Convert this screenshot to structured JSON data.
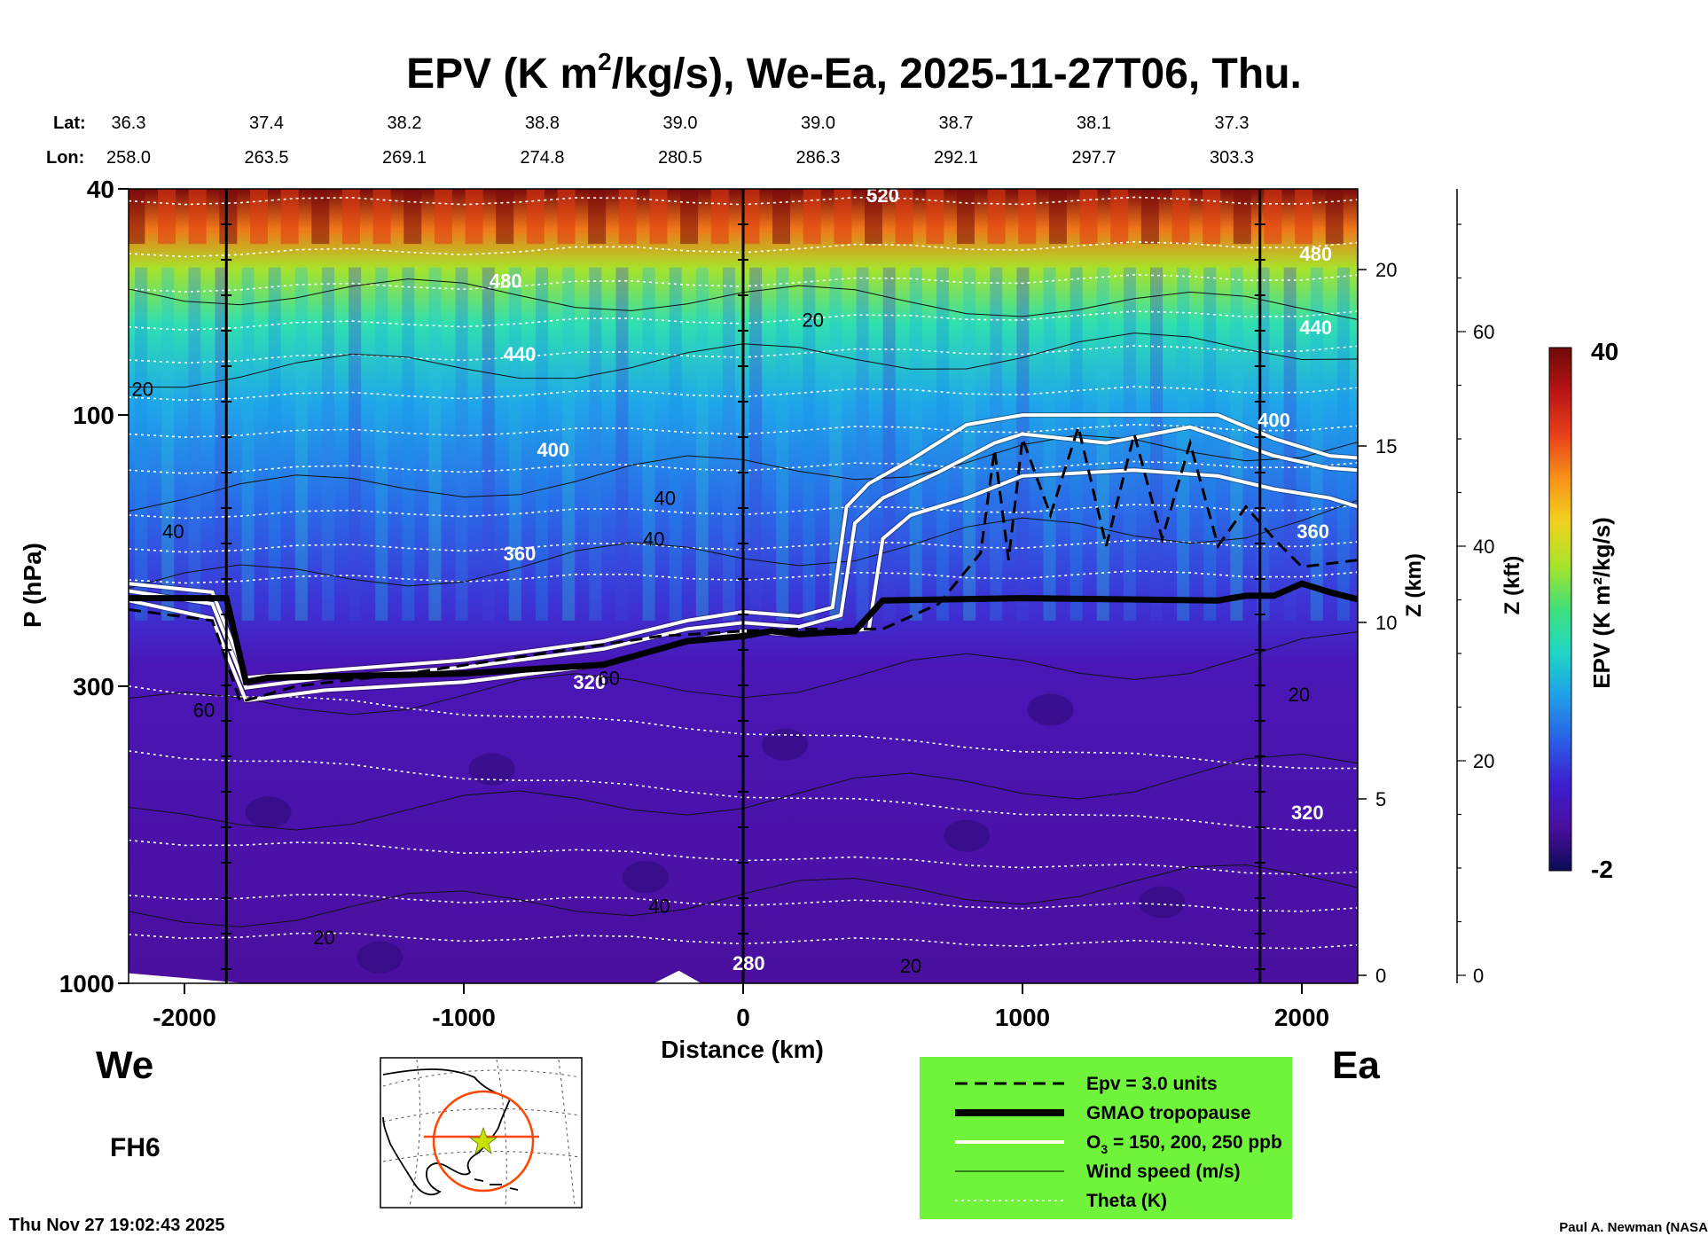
{
  "chart_data": {
    "type": "heatmap",
    "title_main": "EPV (K m",
    "title_sup": "2",
    "title_rest": "/kg/s), We-Ea, 2025-11-27T06, Thu.",
    "variable": "EPV",
    "units": "K m2/kg/s",
    "xlabel": "Distance (km)",
    "ylabel": "P (hPa)",
    "xlim": [
      -2200,
      2200
    ],
    "ylim": [
      1000,
      40
    ],
    "yscale": "log",
    "x_ticks": [
      -2000,
      -1000,
      0,
      1000,
      2000
    ],
    "x_tick_labels": [
      "-2000",
      "-1000",
      "0",
      "1000",
      "2000"
    ],
    "y_ticks": [
      40,
      100,
      300,
      1000
    ],
    "y_tick_labels": [
      "40",
      "100",
      "300",
      "1000"
    ],
    "z_km_label": "Z (km)",
    "z_km_ticks": [
      0,
      5,
      10,
      15,
      20
    ],
    "z_km_tick_labels": [
      "0",
      "5",
      "10",
      "15",
      "20"
    ],
    "z_kft_label": "Z (kft)",
    "z_kft_ticks": [
      0,
      20,
      40,
      60
    ],
    "z_kft_tick_labels": [
      "0",
      "20",
      "40",
      "60"
    ],
    "lat_label": "Lat:",
    "lon_label": "Lon:",
    "lat_values": [
      "36.3",
      "37.4",
      "38.2",
      "38.8",
      "39.0",
      "39.0",
      "38.7",
      "38.1",
      "37.3"
    ],
    "lon_values": [
      "258.0",
      "263.5",
      "269.1",
      "274.8",
      "280.5",
      "286.3",
      "292.1",
      "297.7",
      "303.3"
    ],
    "vertical_lines_km": [
      -1850,
      0,
      1850
    ],
    "colorbar": {
      "label": "EPV (K m²/kg/s)",
      "min": -2,
      "max": 40,
      "min_label": "-2",
      "max_label": "40",
      "colors": [
        "#0b0b55",
        "#4a0f9e",
        "#3c1fd0",
        "#2a5fe6",
        "#1f9fe8",
        "#1fd6c6",
        "#3fe07a",
        "#a8e22a",
        "#f0d21e",
        "#f7921a",
        "#e8401a",
        "#b81414",
        "#6e0909"
      ]
    },
    "theta_contours_K": [
      {
        "label": "520",
        "x": 500,
        "p": 41
      },
      {
        "label": "480",
        "x": -850,
        "p": 58
      },
      {
        "label": "480",
        "x": 2050,
        "p": 52
      },
      {
        "label": "440",
        "x": -800,
        "p": 78
      },
      {
        "label": "440",
        "x": 2050,
        "p": 70
      },
      {
        "label": "400",
        "x": -680,
        "p": 115
      },
      {
        "label": "400",
        "x": 1900,
        "p": 102
      },
      {
        "label": "360",
        "x": -800,
        "p": 175
      },
      {
        "label": "360",
        "x": 2040,
        "p": 160
      },
      {
        "label": "320",
        "x": -550,
        "p": 295
      },
      {
        "label": "320",
        "x": 2020,
        "p": 500
      },
      {
        "label": "280",
        "x": 20,
        "p": 920
      }
    ],
    "wind_contours_ms": [
      {
        "label": "20",
        "x": -2150,
        "p": 90
      },
      {
        "label": "40",
        "x": -2040,
        "p": 160
      },
      {
        "label": "60",
        "x": -1930,
        "p": 330
      },
      {
        "label": "60",
        "x": -480,
        "p": 290
      },
      {
        "label": "40",
        "x": -300,
        "p": 730
      },
      {
        "label": "20",
        "x": -1500,
        "p": 830
      },
      {
        "label": "40",
        "x": -320,
        "p": 165
      },
      {
        "label": "20",
        "x": 250,
        "p": 68
      },
      {
        "label": "40",
        "x": -280,
        "p": 140
      },
      {
        "label": "20",
        "x": 1990,
        "p": 310
      },
      {
        "label": "20",
        "x": 600,
        "p": 930
      }
    ],
    "tropopause_p": [
      [
        -2200,
        210
      ],
      [
        -1850,
        210
      ],
      [
        -1780,
        295
      ],
      [
        -1700,
        290
      ],
      [
        -1000,
        285
      ],
      [
        -500,
        275
      ],
      [
        -200,
        250
      ],
      [
        0,
        245
      ],
      [
        100,
        240
      ],
      [
        200,
        243
      ],
      [
        400,
        240
      ],
      [
        500,
        212
      ],
      [
        1000,
        210
      ],
      [
        1700,
        212
      ],
      [
        1800,
        208
      ],
      [
        1900,
        208
      ],
      [
        2000,
        198
      ],
      [
        2100,
        205
      ],
      [
        2200,
        211
      ]
    ],
    "epv3_p": [
      [
        -2200,
        220
      ],
      [
        -1900,
        230
      ],
      [
        -1800,
        320
      ],
      [
        -1600,
        300
      ],
      [
        -1200,
        285
      ],
      [
        -700,
        262
      ],
      [
        -300,
        245
      ],
      [
        0,
        240
      ],
      [
        200,
        238
      ],
      [
        500,
        238
      ],
      [
        700,
        215
      ],
      [
        850,
        175
      ],
      [
        900,
        115
      ],
      [
        950,
        180
      ],
      [
        1000,
        110
      ],
      [
        1100,
        150
      ],
      [
        1200,
        105
      ],
      [
        1300,
        170
      ],
      [
        1400,
        108
      ],
      [
        1500,
        165
      ],
      [
        1600,
        112
      ],
      [
        1700,
        170
      ],
      [
        1800,
        145
      ],
      [
        1900,
        165
      ],
      [
        2000,
        185
      ],
      [
        2200,
        180
      ]
    ],
    "ozone_ppb": {
      "values": [
        150,
        200,
        250
      ],
      "p150": [
        [
          -2200,
          198
        ],
        [
          -1900,
          205
        ],
        [
          -1780,
          290
        ],
        [
          -1500,
          282
        ],
        [
          -1000,
          270
        ],
        [
          -500,
          250
        ],
        [
          -200,
          230
        ],
        [
          0,
          222
        ],
        [
          200,
          226
        ],
        [
          320,
          218
        ],
        [
          370,
          145
        ],
        [
          450,
          132
        ],
        [
          600,
          120
        ],
        [
          800,
          104
        ],
        [
          1000,
          100
        ],
        [
          1400,
          100
        ],
        [
          1700,
          100
        ],
        [
          1900,
          110
        ],
        [
          2100,
          118
        ],
        [
          2200,
          119
        ]
      ],
      "p200": [
        [
          -2200,
          204
        ],
        [
          -1900,
          215
        ],
        [
          -1780,
          302
        ],
        [
          -1500,
          290
        ],
        [
          -1000,
          278
        ],
        [
          -500,
          258
        ],
        [
          -200,
          238
        ],
        [
          0,
          232
        ],
        [
          200,
          236
        ],
        [
          350,
          225
        ],
        [
          400,
          155
        ],
        [
          500,
          140
        ],
        [
          700,
          126
        ],
        [
          900,
          112
        ],
        [
          1000,
          108
        ],
        [
          1300,
          112
        ],
        [
          1600,
          105
        ],
        [
          1900,
          118
        ],
        [
          2100,
          124
        ],
        [
          2200,
          125
        ]
      ],
      "p250": [
        [
          -2200,
          212
        ],
        [
          -1900,
          228
        ],
        [
          -1780,
          318
        ],
        [
          -1500,
          305
        ],
        [
          -1000,
          295
        ],
        [
          -500,
          275
        ],
        [
          -200,
          250
        ],
        [
          0,
          240
        ],
        [
          200,
          244
        ],
        [
          450,
          238
        ],
        [
          500,
          165
        ],
        [
          600,
          150
        ],
        [
          800,
          140
        ],
        [
          1000,
          128
        ],
        [
          1400,
          125
        ],
        [
          1700,
          128
        ],
        [
          1900,
          135
        ],
        [
          2100,
          140
        ],
        [
          2200,
          145
        ]
      ]
    },
    "legend": [
      {
        "label": "Epv = 3.0 units",
        "style": "dashed-black"
      },
      {
        "label": "GMAO tropopause",
        "style": "thick-black"
      },
      {
        "label": "O",
        "sub": "3",
        "rest": " = 150, 200, 250 ppb",
        "style": "double-white"
      },
      {
        "label": "Wind speed (m/s)",
        "style": "thin-black"
      },
      {
        "label": "Theta (K)",
        "style": "dotted-white"
      }
    ],
    "legend_bg": "#6ff33b"
  },
  "labels": {
    "west": "We",
    "east": "Ea",
    "forecast_hour": "FH6",
    "timestamp": "Thu Nov 27 19:02:43 2025",
    "credit": "Paul A. Newman (NASA"
  },
  "colors": {
    "map_route": "#ff4500",
    "map_marker": "#c8e000"
  }
}
